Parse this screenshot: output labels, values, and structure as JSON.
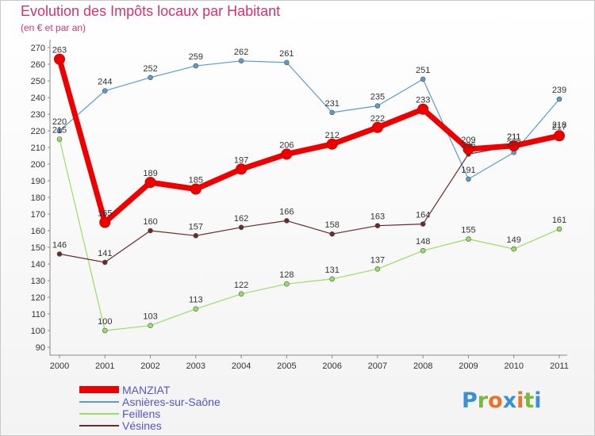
{
  "header": {
    "title": "Evolution des Impôts locaux par Habitant",
    "subtitle": "(en € et par an)"
  },
  "brand": {
    "letters": [
      "P",
      "r",
      "o",
      "x",
      "i",
      "t",
      "i"
    ],
    "colors": [
      "#3b8fd8",
      "#7ab93b",
      "#e8732a",
      "#3b8fd8",
      "#e8732a",
      "#7ab93b",
      "#3b8fd8"
    ]
  },
  "chart_data": {
    "type": "line",
    "title": "Evolution des Impôts locaux par Habitant",
    "subtitle": "(en € et par an)",
    "categories": [
      "2000",
      "2001",
      "2002",
      "2003",
      "2004",
      "2005",
      "2006",
      "2007",
      "2008",
      "2009",
      "2010",
      "2011"
    ],
    "ylim": [
      90,
      270
    ],
    "yticks": [
      90,
      100,
      110,
      120,
      130,
      140,
      150,
      160,
      170,
      180,
      190,
      200,
      210,
      220,
      230,
      240,
      250,
      260,
      270
    ],
    "grid": false,
    "legend_position": "bottom-left",
    "series": [
      {
        "name": "Asnières-sur-Saône",
        "color": "#5b9bcf",
        "values": [
          220,
          244,
          252,
          259,
          262,
          261,
          231,
          235,
          251,
          191,
          207,
          239
        ],
        "labels": [
          "220",
          "244",
          "252",
          "259",
          "262",
          "261",
          "231",
          "235",
          "251",
          "191",
          "207",
          "239"
        ]
      },
      {
        "name": "Feillens",
        "color": "#99dd66",
        "values": [
          215,
          100,
          103,
          113,
          122,
          128,
          131,
          137,
          148,
          155,
          149,
          161
        ],
        "labels": [
          "215",
          "100",
          "103",
          "113",
          "122",
          "128",
          "131",
          "137",
          "148",
          "155",
          "149",
          "161"
        ]
      },
      {
        "name": "Vésines",
        "color": "#6b2a2a",
        "values": [
          146,
          141,
          160,
          157,
          162,
          166,
          158,
          163,
          164,
          206,
          211,
          218
        ],
        "labels": [
          "146",
          "141",
          "160",
          "157",
          "162",
          "166",
          "158",
          "163",
          "164",
          "206",
          "211",
          "218"
        ]
      },
      {
        "name": "MANZIAT",
        "color": "#ee0000",
        "values": [
          263,
          165,
          189,
          185,
          197,
          206,
          212,
          222,
          233,
          209,
          211,
          217
        ],
        "labels": [
          "263",
          "165",
          "189",
          "185",
          "197",
          "206",
          "212",
          "222",
          "233",
          "209",
          "211",
          "217"
        ]
      }
    ],
    "legend": [
      "MANZIAT",
      "Asnières-sur-Saône",
      "Feillens",
      "Vésines"
    ]
  }
}
